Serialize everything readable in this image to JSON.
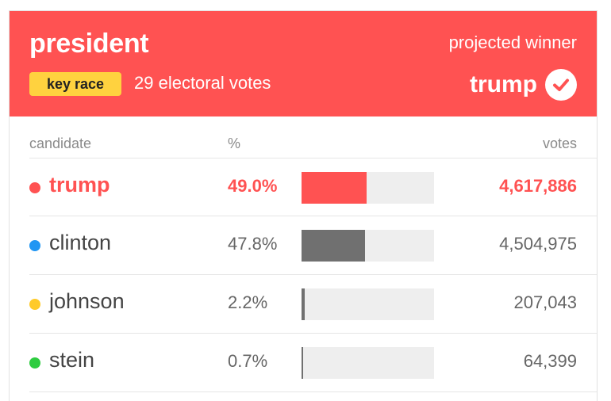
{
  "header": {
    "title": "president",
    "badge": "key race",
    "electoral_votes": "29 electoral votes",
    "projected_label": "projected winner",
    "winner": "trump"
  },
  "columns": {
    "candidate": "candidate",
    "percent": "%",
    "votes": "votes"
  },
  "colors": {
    "header_bg": "#ff5252",
    "badge_bg": "#ffd23f",
    "republican": "#ff5252",
    "democrat": "#2196f3",
    "libertarian": "#ffca28",
    "green": "#2ecc40",
    "clinton_bar": "#707070"
  },
  "candidates": [
    {
      "name": "trump",
      "percent": "49.0%",
      "share": 0.49,
      "votes": "4,617,886",
      "dot_color": "#ff5252",
      "bar_color": "#ff5252",
      "winner": true
    },
    {
      "name": "clinton",
      "percent": "47.8%",
      "share": 0.478,
      "votes": "4,504,975",
      "dot_color": "#2196f3",
      "bar_color": "#707070",
      "winner": false
    },
    {
      "name": "johnson",
      "percent": "2.2%",
      "share": 0.022,
      "votes": "207,043",
      "dot_color": "#ffca28",
      "bar_color": "#707070",
      "winner": false
    },
    {
      "name": "stein",
      "percent": "0.7%",
      "share": 0.007,
      "votes": "64,399",
      "dot_color": "#2ecc40",
      "bar_color": "#707070",
      "winner": false
    }
  ]
}
